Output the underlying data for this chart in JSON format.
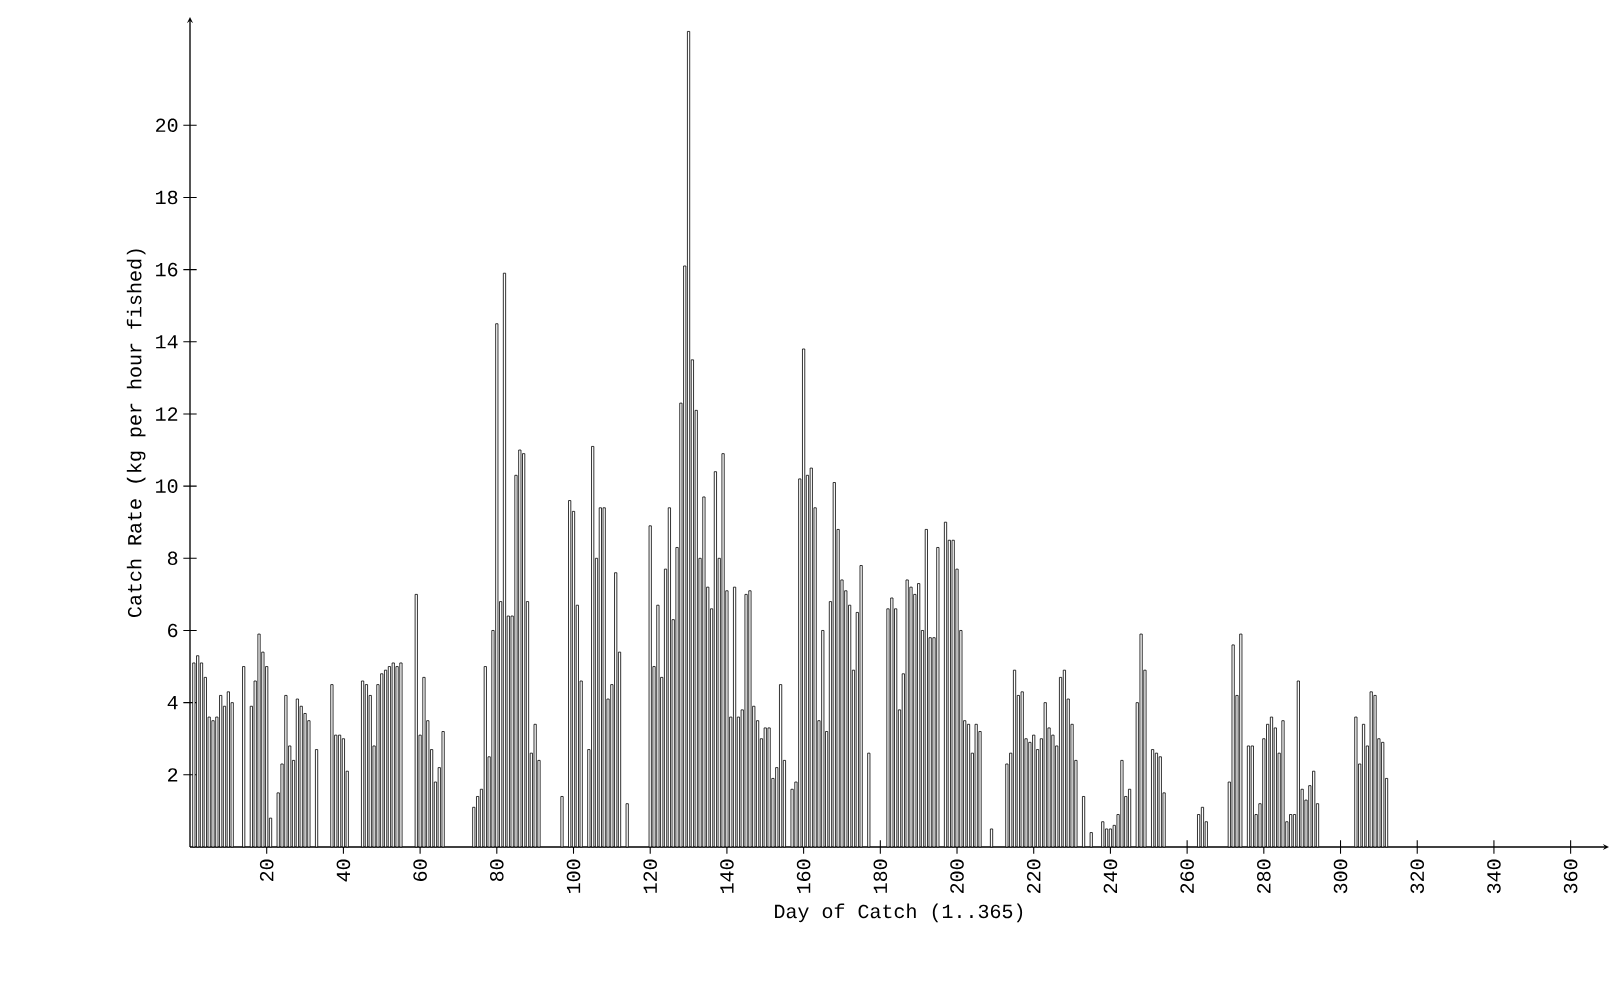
{
  "chart_data": {
    "type": "bar",
    "xlabel": "Day of Catch (1..365)",
    "ylabel": "Catch Rate (kg per hour fished)",
    "color": "#000000",
    "xlim": [
      0,
      370
    ],
    "ylim": [
      0,
      23
    ],
    "xticks": [
      20,
      40,
      60,
      80,
      100,
      120,
      140,
      160,
      180,
      200,
      220,
      240,
      260,
      280,
      300,
      320,
      340,
      360
    ],
    "yticks": [
      2,
      4,
      6,
      8,
      10,
      12,
      14,
      16,
      18,
      20
    ],
    "x": [
      1,
      2,
      3,
      4,
      5,
      6,
      7,
      8,
      9,
      10,
      11,
      14,
      16,
      17,
      18,
      19,
      20,
      21,
      23,
      24,
      25,
      26,
      27,
      28,
      29,
      30,
      31,
      33,
      37,
      38,
      39,
      40,
      41,
      45,
      46,
      47,
      48,
      49,
      50,
      51,
      52,
      53,
      54,
      55,
      59,
      60,
      61,
      62,
      63,
      64,
      65,
      66,
      74,
      75,
      76,
      77,
      78,
      79,
      80,
      81,
      82,
      83,
      84,
      85,
      86,
      87,
      88,
      89,
      90,
      91,
      97,
      99,
      100,
      101,
      102,
      104,
      105,
      106,
      107,
      108,
      109,
      110,
      111,
      112,
      114,
      120,
      121,
      122,
      123,
      124,
      125,
      126,
      127,
      128,
      129,
      130,
      131,
      132,
      133,
      134,
      135,
      136,
      137,
      138,
      139,
      140,
      141,
      142,
      143,
      144,
      145,
      146,
      147,
      148,
      149,
      150,
      151,
      152,
      153,
      154,
      155,
      157,
      158,
      159,
      160,
      161,
      162,
      163,
      164,
      165,
      166,
      167,
      168,
      169,
      170,
      171,
      172,
      173,
      174,
      175,
      177,
      182,
      183,
      184,
      185,
      186,
      187,
      188,
      189,
      190,
      191,
      192,
      193,
      194,
      195,
      197,
      198,
      199,
      200,
      201,
      202,
      203,
      204,
      205,
      206,
      209,
      213,
      214,
      215,
      216,
      217,
      218,
      219,
      220,
      221,
      222,
      223,
      224,
      225,
      226,
      227,
      228,
      229,
      230,
      231,
      233,
      235,
      238,
      239,
      240,
      241,
      242,
      243,
      244,
      245,
      247,
      248,
      249,
      251,
      252,
      253,
      254,
      263,
      264,
      265,
      271,
      272,
      273,
      274,
      276,
      277,
      278,
      279,
      280,
      281,
      282,
      283,
      284,
      285,
      286,
      287,
      288,
      289,
      290,
      291,
      292,
      293,
      294,
      304,
      305,
      306,
      307,
      308,
      309,
      310,
      311,
      312
    ],
    "values": [
      5.1,
      5.3,
      5.1,
      4.7,
      3.6,
      3.5,
      3.6,
      4.2,
      3.9,
      4.3,
      4.0,
      5.0,
      3.9,
      4.6,
      5.9,
      5.4,
      5.0,
      0.8,
      1.5,
      2.3,
      4.2,
      2.8,
      2.4,
      4.1,
      3.9,
      3.7,
      3.5,
      2.7,
      4.5,
      3.1,
      3.1,
      3.0,
      2.1,
      4.6,
      4.5,
      4.2,
      2.8,
      4.5,
      4.8,
      4.9,
      5.0,
      5.1,
      5.0,
      5.1,
      7.0,
      3.1,
      4.7,
      3.5,
      2.7,
      1.8,
      2.2,
      3.2,
      1.1,
      1.4,
      1.6,
      5.0,
      2.5,
      6.0,
      14.5,
      6.8,
      15.9,
      6.4,
      6.4,
      10.3,
      11.0,
      10.9,
      6.8,
      2.6,
      3.4,
      2.4,
      1.4,
      9.6,
      9.3,
      6.7,
      4.6,
      2.7,
      11.1,
      8.0,
      9.4,
      9.4,
      4.1,
      4.5,
      7.6,
      5.4,
      1.2,
      8.9,
      5.0,
      6.7,
      4.7,
      7.7,
      9.4,
      6.3,
      8.3,
      12.3,
      16.1,
      22.6,
      13.5,
      12.1,
      8.0,
      9.7,
      7.2,
      6.6,
      10.4,
      8.0,
      10.9,
      7.1,
      3.6,
      7.2,
      3.6,
      3.8,
      7.0,
      7.1,
      3.9,
      3.5,
      3.0,
      3.3,
      3.3,
      1.9,
      2.2,
      4.5,
      2.4,
      1.6,
      1.8,
      10.2,
      13.8,
      10.3,
      10.5,
      9.4,
      3.5,
      6.0,
      3.2,
      6.8,
      10.1,
      8.8,
      7.4,
      7.1,
      6.7,
      4.9,
      6.5,
      7.8,
      2.6,
      6.6,
      6.9,
      6.6,
      3.8,
      4.8,
      7.4,
      7.2,
      7.0,
      7.3,
      6.0,
      8.8,
      5.8,
      5.8,
      8.3,
      9.0,
      8.5,
      8.5,
      7.7,
      6.0,
      3.5,
      3.4,
      2.6,
      3.4,
      3.2,
      0.5,
      2.3,
      2.6,
      4.9,
      4.2,
      4.3,
      3.0,
      2.9,
      3.1,
      2.7,
      3.0,
      4.0,
      3.3,
      3.1,
      2.8,
      4.7,
      4.9,
      4.1,
      3.4,
      2.4,
      1.4,
      0.4,
      0.7,
      0.5,
      0.5,
      0.6,
      0.9,
      2.4,
      1.4,
      1.6,
      4.0,
      5.9,
      4.9,
      2.7,
      2.6,
      2.5,
      1.5,
      0.9,
      1.1,
      0.7,
      1.8,
      5.6,
      4.2,
      5.9,
      2.8,
      2.8,
      0.9,
      1.2,
      3.0,
      3.4,
      3.6,
      3.3,
      2.6,
      3.5,
      0.7,
      0.9,
      0.9,
      4.6,
      1.6,
      1.3,
      1.7,
      2.1,
      1.2,
      3.6,
      2.3,
      3.4,
      2.8,
      4.3,
      4.2,
      3.0,
      2.9,
      1.9
    ]
  }
}
